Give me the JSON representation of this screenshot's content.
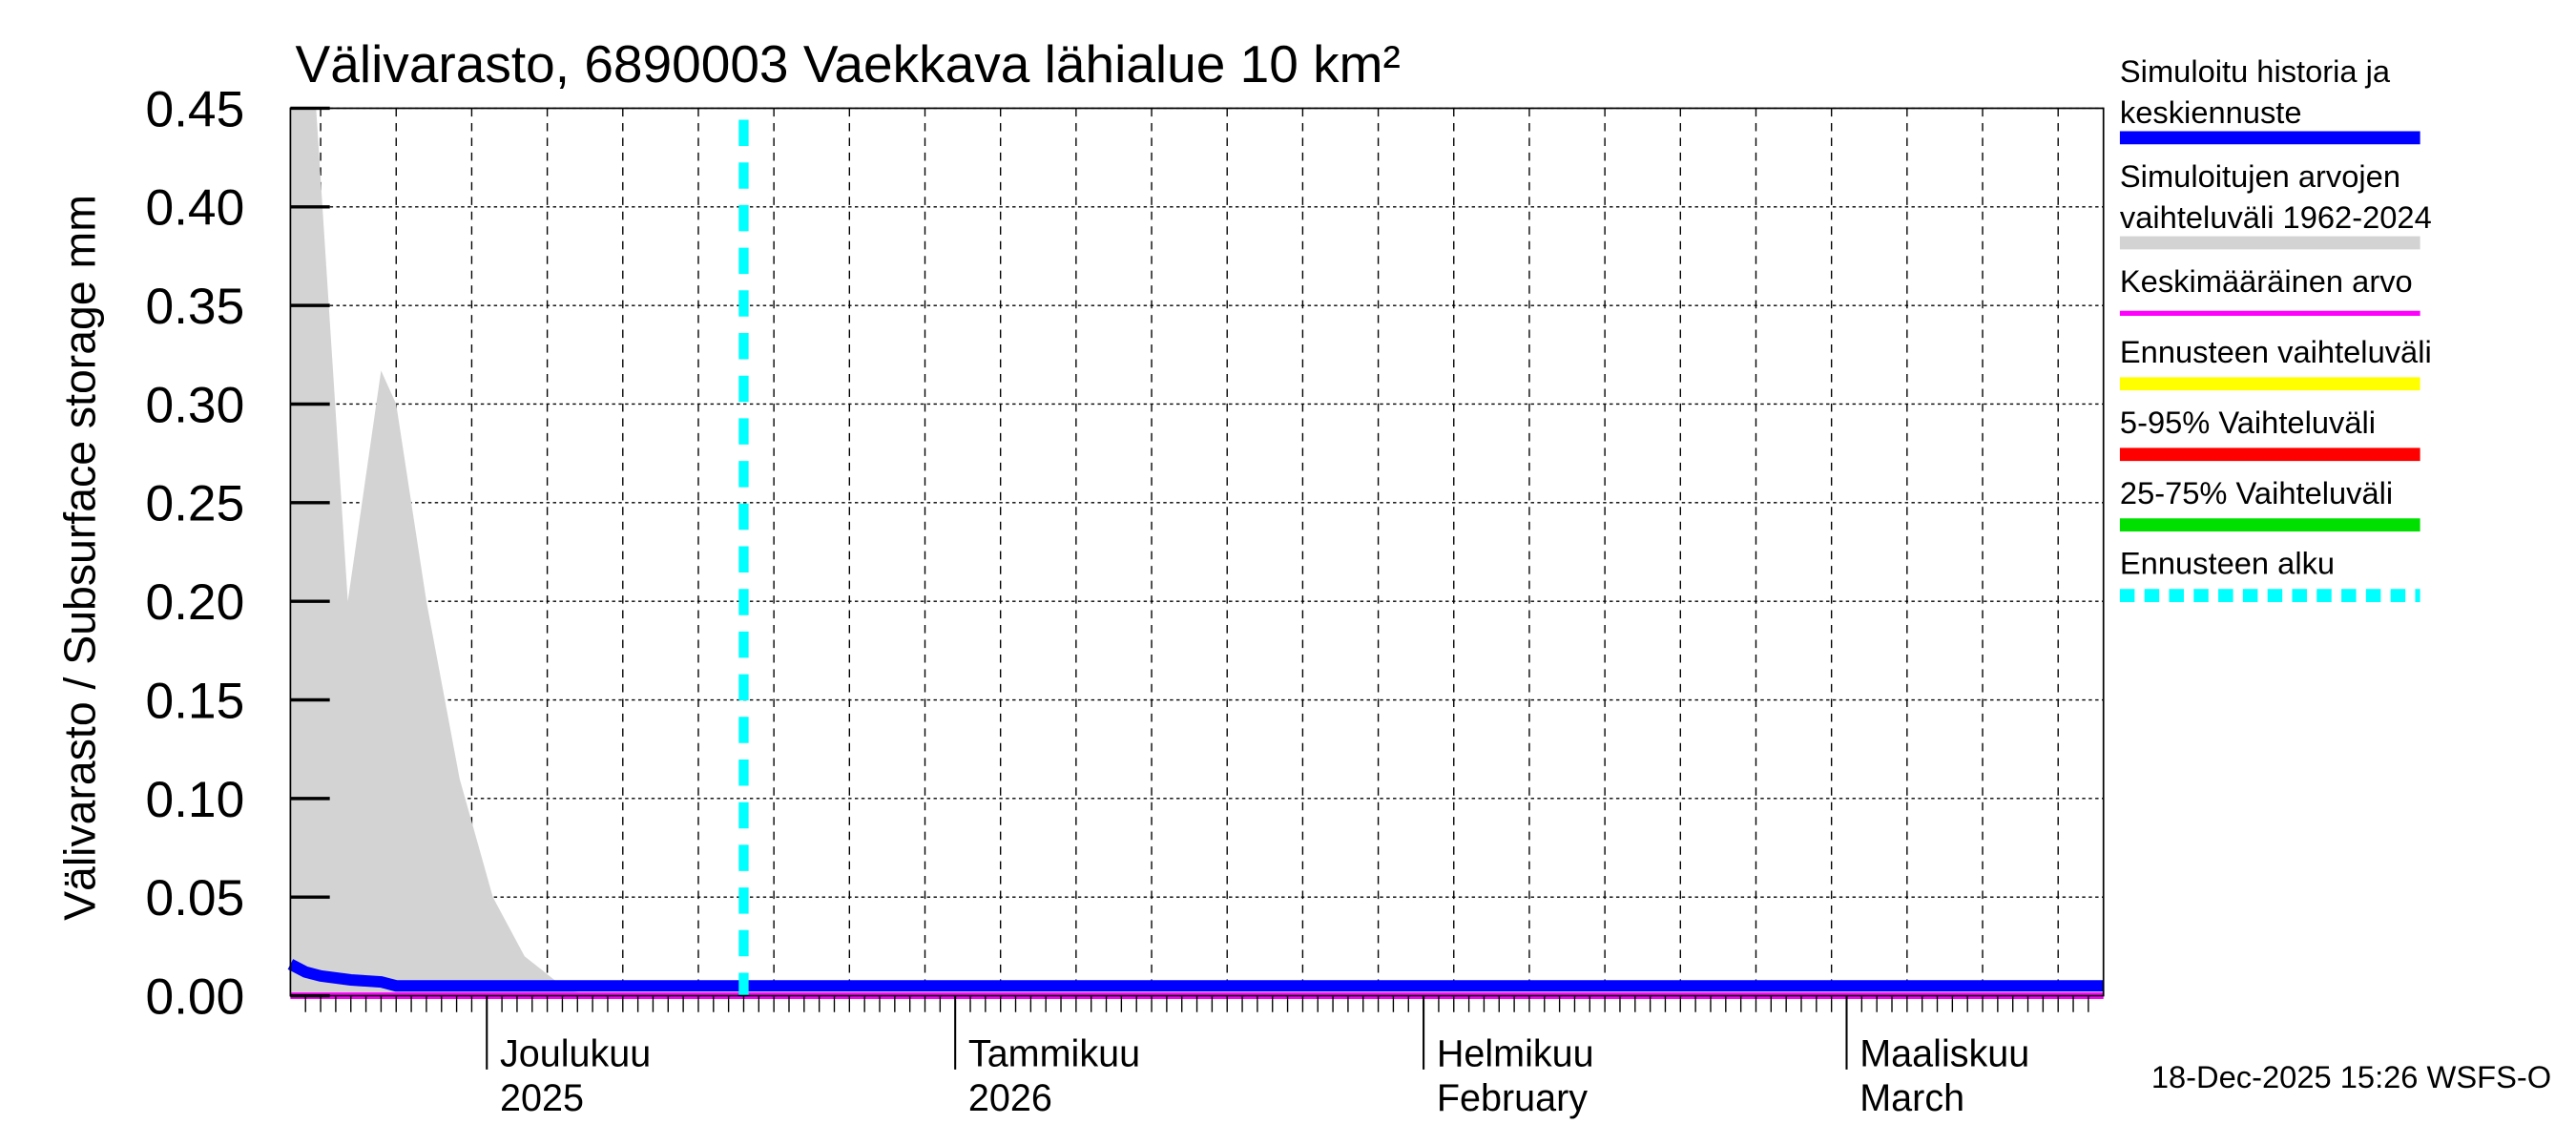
{
  "chart_data": {
    "type": "area",
    "title": "Välivarasto, 6890003 Vaekkava lähialue 10 km²",
    "ylabel": "Välivarasto / Subsurface storage  mm",
    "xlabel": "",
    "x_unit": "days since 2025-11-18",
    "xlim": [
      0,
      120
    ],
    "ylim": [
      0,
      0.45
    ],
    "yticks": [
      "0.00",
      "0.05",
      "0.10",
      "0.15",
      "0.20",
      "0.25",
      "0.30",
      "0.35",
      "0.40",
      "0.45"
    ],
    "grid": true,
    "month_ticks": [
      {
        "day": 13,
        "line1": "Joulukuu",
        "line2": "2025"
      },
      {
        "day": 44,
        "line1": "Tammikuu",
        "line2": "2026"
      },
      {
        "day": 75,
        "line1": "Helmikuu",
        "line2": "February"
      },
      {
        "day": 103,
        "line1": "Maaliskuu",
        "line2": "March"
      }
    ],
    "forecast_start_day": 30,
    "series": [
      {
        "name": "Simuloitujen arvojen vaihteluväli 1962-2024",
        "kind": "band",
        "color": "#d3d3d3",
        "x": [
          0,
          1.7,
          3.8,
          6,
          7,
          9,
          11.2,
          13.4,
          15.5,
          18.3,
          20,
          120
        ],
        "upper": [
          0.45,
          0.45,
          0.2,
          0.317,
          0.3,
          0.2,
          0.11,
          0.05,
          0.02,
          0.003,
          0,
          0
        ],
        "lower": [
          0,
          0,
          0,
          0,
          0,
          0,
          0,
          0,
          0,
          0,
          0,
          0
        ]
      },
      {
        "name": "Keskimääräinen arvo",
        "kind": "line",
        "color": "#ff00ff",
        "x": [
          0,
          120
        ],
        "y": [
          0,
          0
        ]
      },
      {
        "name": "Simuloitu historia ja keskiennuste",
        "kind": "line",
        "color": "#0000ff",
        "x": [
          0,
          1,
          2,
          4,
          6,
          7,
          120
        ],
        "y": [
          0.016,
          0.012,
          0.01,
          0.008,
          0.007,
          0.005,
          0.005
        ]
      }
    ],
    "legend_position": "right"
  },
  "legend": [
    {
      "line1": "Simuloitu historia ja",
      "line2": "keskiennuste",
      "color": "#0000ff",
      "style": "solid"
    },
    {
      "line1": "Simuloitujen arvojen",
      "line2": "vaihteluväli 1962-2024",
      "color": "#d3d3d3",
      "style": "solid"
    },
    {
      "line1": "Keskimääräinen arvo",
      "line2": "",
      "color": "#ff00ff",
      "style": "thin"
    },
    {
      "line1": "Ennusteen vaihteluväli",
      "line2": "",
      "color": "#ffff00",
      "style": "solid"
    },
    {
      "line1": "5-95% Vaihteluväli",
      "line2": "",
      "color": "#ff0000",
      "style": "solid"
    },
    {
      "line1": "25-75% Vaihteluväli",
      "line2": "",
      "color": "#00e000",
      "style": "solid"
    },
    {
      "line1": "Ennusteen alku",
      "line2": "",
      "color": "#00ffff",
      "style": "dashed"
    }
  ],
  "footer": "18-Dec-2025 15:26 WSFS-O"
}
